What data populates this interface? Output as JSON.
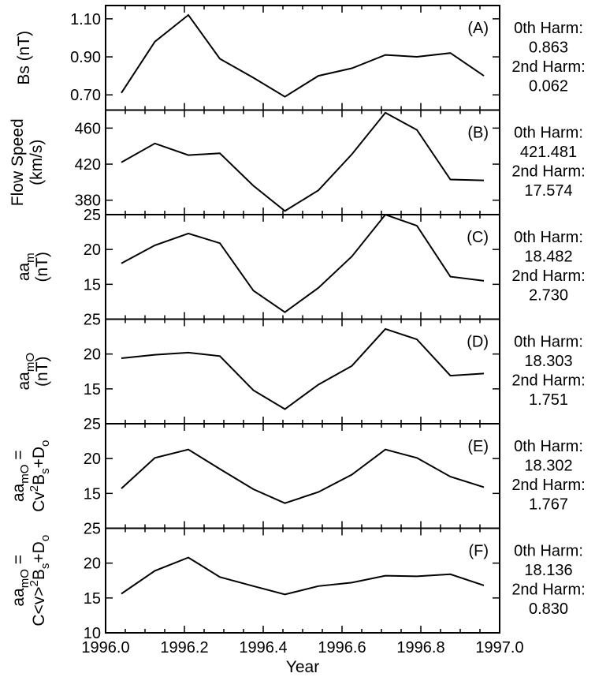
{
  "chart_data": {
    "type": "line",
    "xlabel": "Year",
    "xlim": [
      1996.0,
      1997.0
    ],
    "xticks": [
      "1996.0",
      "1996.2",
      "1996.4",
      "1996.6",
      "1996.8",
      "1997.0"
    ],
    "x": [
      1996.04,
      1996.125,
      1996.21,
      1996.29,
      1996.375,
      1996.455,
      1996.54,
      1996.625,
      1996.71,
      1996.79,
      1996.875,
      1996.96
    ],
    "panels": [
      {
        "label": "(A)",
        "ylabel_lines": [
          "Bs (nT)"
        ],
        "ylim": [
          0.62,
          1.17
        ],
        "yticks": [
          "0.70",
          "0.90",
          "1.10"
        ],
        "values": [
          0.71,
          0.98,
          1.12,
          0.89,
          0.79,
          0.69,
          0.8,
          0.84,
          0.91,
          0.9,
          0.92,
          0.8
        ],
        "side_text": [
          "0th Harm:",
          "0.863",
          "2nd Harm:",
          "0.062"
        ]
      },
      {
        "label": "(B)",
        "ylabel_lines": [
          "Flow Speed",
          "(km/s)"
        ],
        "ylim": [
          364,
          480
        ],
        "yticks": [
          "380",
          "420",
          "460"
        ],
        "values": [
          422,
          443,
          430,
          432,
          396,
          368,
          391,
          431,
          477,
          458,
          403,
          402
        ],
        "side_text": [
          "0th Harm:",
          "421.481",
          "2nd Harm:",
          "17.574"
        ]
      },
      {
        "label": "(C)",
        "ylabel_lines": [
          "aa",
          "(nT)"
        ],
        "ylabel_sub": "m",
        "ylim": [
          10,
          25
        ],
        "yticks": [
          "15",
          "20",
          "25"
        ],
        "values": [
          18.0,
          20.6,
          22.3,
          20.9,
          14.1,
          11.0,
          14.5,
          19.0,
          25.5,
          23.4,
          16.1,
          15.5
        ],
        "side_text": [
          "0th Harm:",
          "18.482",
          "2nd Harm:",
          "2.730"
        ]
      },
      {
        "label": "(D)",
        "ylabel_lines": [
          "aa",
          "(nT)"
        ],
        "ylabel_sub": "mO",
        "ylim": [
          10,
          25
        ],
        "yticks": [
          "15",
          "20",
          "25"
        ],
        "values": [
          19.4,
          19.9,
          20.2,
          19.7,
          14.8,
          12.1,
          15.6,
          18.3,
          23.6,
          22.1,
          16.9,
          17.2
        ],
        "side_text": [
          "0th Harm:",
          "18.303",
          "2nd Harm:",
          "1.751"
        ]
      },
      {
        "label": "(E)",
        "ylabel_lines": [
          "aa",
          "Cv",
          "B",
          "+D"
        ],
        "ylabel_text": [
          "aamO =",
          "Cv2Bs+Do"
        ],
        "ylim": [
          10,
          25
        ],
        "yticks": [
          "15",
          "20",
          "25"
        ],
        "values": [
          15.7,
          20.1,
          21.3,
          18.5,
          15.6,
          13.6,
          15.2,
          17.7,
          21.3,
          20.1,
          17.4,
          15.9
        ],
        "side_text": [
          "0th Harm:",
          "18.302",
          "2nd Harm:",
          "1.767"
        ]
      },
      {
        "label": "(F)",
        "ylabel_text": [
          "aamO =",
          "C<v>2Bs+Do"
        ],
        "ylim": [
          10,
          25
        ],
        "yticks": [
          "10",
          "15",
          "20",
          "25"
        ],
        "values": [
          15.6,
          18.9,
          20.8,
          18.0,
          16.7,
          15.5,
          16.7,
          17.2,
          18.2,
          18.1,
          18.4,
          16.8
        ],
        "side_text": [
          "0th Harm:",
          "18.136",
          "2nd Harm:",
          "0.830"
        ]
      }
    ]
  }
}
